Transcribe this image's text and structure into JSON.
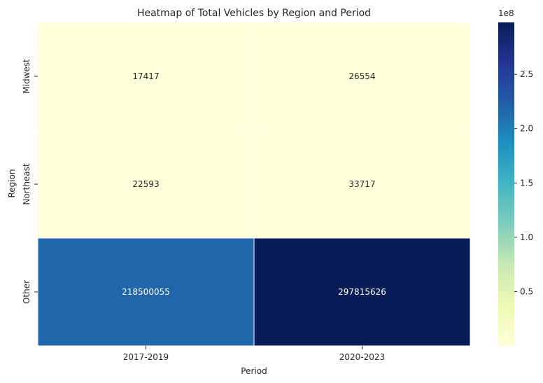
{
  "chart_data": {
    "type": "heatmap",
    "title": "Heatmap of Total Vehicles by Region and Period",
    "xlabel": "Period",
    "ylabel": "Region",
    "x_categories": [
      "2017-2019",
      "2020-2023"
    ],
    "y_categories": [
      "Midwest",
      "Northeast",
      "Other"
    ],
    "values": [
      [
        17417,
        26554
      ],
      [
        22593,
        33717
      ],
      [
        218500055,
        297815626
      ]
    ],
    "colormap": "YlGnBu",
    "colorbar": {
      "multiplier_label": "1e8",
      "ticks": [
        0.5,
        1.0,
        1.5,
        2.0,
        2.5
      ],
      "tick_labels": [
        "0.5",
        "1.0",
        "1.5",
        "2.0",
        "2.5"
      ],
      "scale": 100000000
    },
    "cell_border_color": "#ffffff"
  }
}
